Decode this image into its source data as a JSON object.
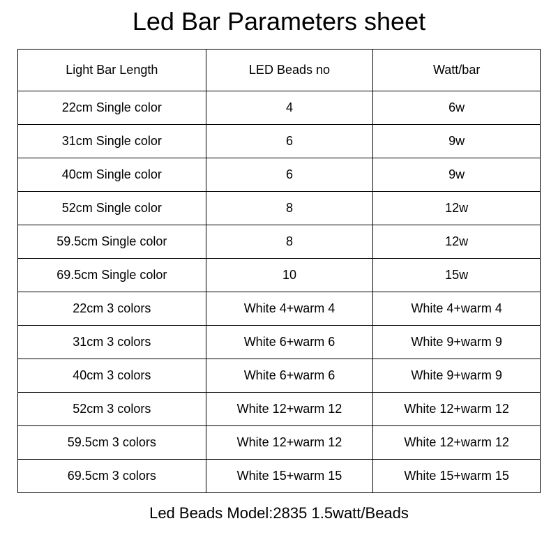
{
  "title": "Led Bar Parameters sheet",
  "table": {
    "columns": [
      "Light Bar Length",
      "LED Beads no",
      "Watt/bar"
    ],
    "rows": [
      [
        "22cm Single color",
        "4",
        "6w"
      ],
      [
        "31cm Single color",
        "6",
        "9w"
      ],
      [
        "40cm Single color",
        "6",
        "9w"
      ],
      [
        "52cm Single color",
        "8",
        "12w"
      ],
      [
        "59.5cm Single color",
        "8",
        "12w"
      ],
      [
        "69.5cm Single color",
        "10",
        "15w"
      ],
      [
        "22cm 3 colors",
        "White 4+warm 4",
        "White 4+warm 4"
      ],
      [
        "31cm 3 colors",
        "White 6+warm 6",
        "White 9+warm 9"
      ],
      [
        "40cm 3 colors",
        "White 6+warm 6",
        "White 9+warm 9"
      ],
      [
        "52cm 3 colors",
        "White 12+warm 12",
        "White 12+warm 12"
      ],
      [
        "59.5cm 3 colors",
        "White 12+warm 12",
        "White 12+warm 12"
      ],
      [
        "69.5cm 3 colors",
        "White 15+warm 15",
        "White 15+warm 15"
      ]
    ],
    "column_widths": [
      "36%",
      "32%",
      "32%"
    ],
    "header_row_height": 60,
    "data_row_height": 48,
    "border_color": "#000000",
    "text_color": "#000000",
    "background_color": "#ffffff",
    "font_size": 18
  },
  "footer": "Led Beads Model:2835 1.5watt/Beads",
  "title_fontsize": 36,
  "footer_fontsize": 22
}
